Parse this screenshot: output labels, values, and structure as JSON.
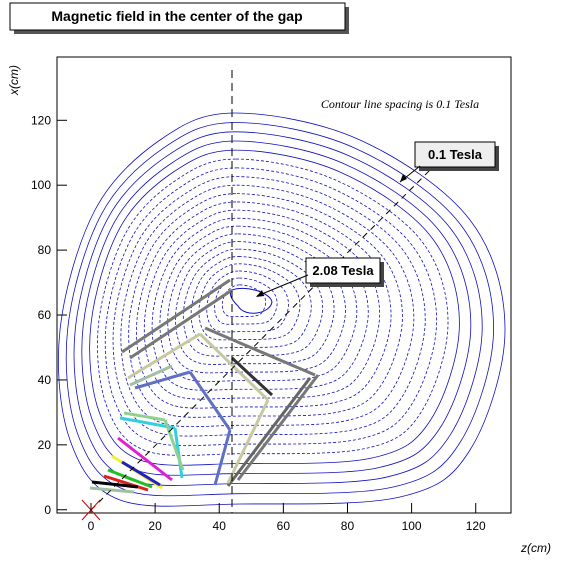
{
  "chart_data": {
    "type": "contour",
    "title": "Magnetic field in the center of the gap",
    "x_label": "z(cm)",
    "y_label": "x(cm)",
    "xlim": [
      -10.6,
      131
    ],
    "ylim": [
      -1,
      139.5
    ],
    "xticks": [
      0,
      20,
      40,
      60,
      80,
      100,
      120
    ],
    "yticks": [
      0,
      20,
      40,
      60,
      80,
      100,
      120
    ],
    "color": "#1010c0",
    "annotations": {
      "spacing": "Contour line spacing is 0.1 Tesla",
      "outer": "0.1 Tesla",
      "peak": "2.08 Tesla"
    }
  }
}
